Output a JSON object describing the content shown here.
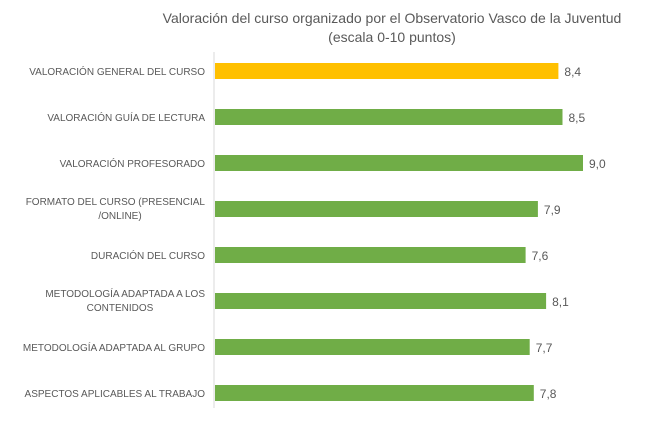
{
  "chart_data": {
    "type": "bar",
    "orientation": "horizontal",
    "title": "Valoración del curso organizado por el Observatorio Vasco de la Juventud",
    "subtitle": "(escala 0-10 puntos)",
    "categories": [
      [
        "VALORACIÓN GENERAL DEL CURSO"
      ],
      [
        "VALORACIÓN GUÍA DE LECTURA"
      ],
      [
        "VALORACIÓN PROFESORADO"
      ],
      [
        "FORMATO DEL CURSO (PRESENCIAL",
        "/ONLINE)"
      ],
      [
        "DURACIÓN DEL CURSO"
      ],
      [
        "METODOLOGÍA ADAPTADA A LOS",
        "CONTENIDOS"
      ],
      [
        "METODOLOGÍA ADAPTADA AL GRUPO"
      ],
      [
        "ASPECTOS APLICABLES AL TRABAJO"
      ]
    ],
    "values": [
      8.4,
      8.5,
      9.0,
      7.9,
      7.6,
      8.1,
      7.7,
      7.8
    ],
    "data_labels": [
      "8,4",
      "8,5",
      "9,0",
      "7,9",
      "7,6",
      "8,1",
      "7,7",
      "7,8"
    ],
    "xlim": [
      0,
      10
    ],
    "grid": false,
    "colors": {
      "highlight": "#FFC000",
      "default": "#70AD47",
      "axis": "#D9D9D9",
      "text": "#595959"
    },
    "highlight_index": 0
  }
}
